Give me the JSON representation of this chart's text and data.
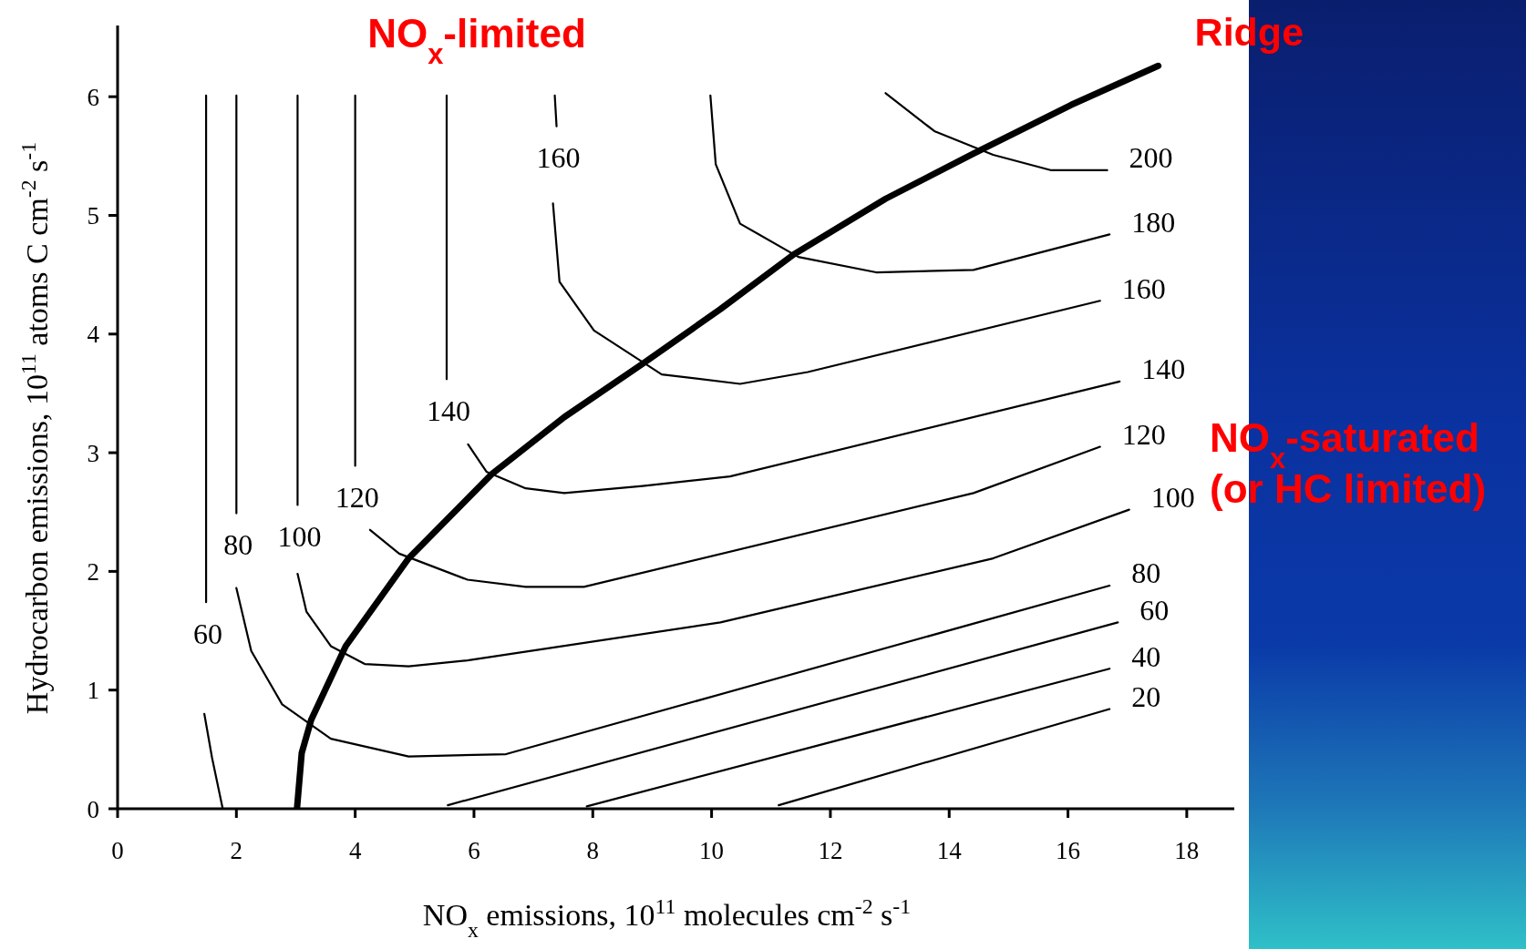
{
  "chart_data": {
    "type": "line",
    "xlabel": "NO$_{x}$ emissions, 10$^{11}$ molecules cm$^{-2}$ s$^{-1}$",
    "ylabel": "Hydrocarbon emissions, 10$^{11}$ atoms C cm$^{-2}$ s$^{-1}$",
    "xlim": [
      0,
      18.8
    ],
    "ylim": [
      0,
      6.6
    ],
    "xticks": [
      0,
      2,
      4,
      6,
      8,
      10,
      12,
      14,
      16,
      18
    ],
    "yticks": [
      0,
      1,
      2,
      3,
      4,
      5,
      6
    ],
    "marker": "none",
    "line_style": "solid",
    "annotations": [
      "NO$_{x}$-limited",
      "NO$_{x}$-saturated\n(or HC limited)"
    ],
    "series": [
      {
        "name": "Ridge",
        "color": "#000000",
        "x": [
          3.02,
          3.1,
          3.26,
          3.84,
          4.9,
          6.3,
          7.52,
          8.84,
          10.15,
          11.38,
          12.93,
          14.41,
          16.05,
          17.52
        ],
        "values": [
          0,
          0.47,
          0.75,
          1.37,
          2.11,
          2.82,
          3.3,
          3.75,
          4.21,
          4.67,
          5.14,
          5.52,
          5.93,
          6.26
        ]
      },
      {
        "name": "200",
        "color": "#000000",
        "x": [
          12.93,
          13.75,
          14.74,
          15.72,
          16.66
        ],
        "values": [
          6.03,
          5.71,
          5.51,
          5.38,
          5.38
        ]
      },
      {
        "name": "180",
        "color": "#000000",
        "x": [
          9.98,
          10.07,
          10.48,
          11.46,
          12.77,
          14.41,
          16.7
        ],
        "values": [
          6.01,
          5.43,
          4.93,
          4.65,
          4.52,
          4.54,
          4.84
        ]
      },
      {
        "name": "160",
        "color": "#000000",
        "x": [
          7.36,
          7.39
        ],
        "values": [
          6.01,
          5.75
        ]
      },
      {
        "name": "160",
        "color": "#000000",
        "x": [
          7.33,
          7.44,
          8.02,
          9.16,
          10.48,
          11.62,
          16.54
        ],
        "values": [
          5.1,
          4.44,
          4.03,
          3.66,
          3.58,
          3.68,
          4.28
        ]
      },
      {
        "name": "140",
        "color": "#000000",
        "x": [
          5.54,
          5.54
        ],
        "values": [
          6.01,
          3.62
        ]
      },
      {
        "name": "140",
        "color": "#000000",
        "x": [
          5.9,
          6.21,
          6.87,
          7.52,
          8.84,
          10.31,
          16.87
        ],
        "values": [
          3.07,
          2.84,
          2.7,
          2.66,
          2.72,
          2.8,
          3.6
        ]
      },
      {
        "name": "120",
        "color": "#000000",
        "x": [
          4.0,
          4.0
        ],
        "values": [
          6.01,
          2.89
        ]
      },
      {
        "name": "120",
        "color": "#000000",
        "x": [
          4.25,
          4.74,
          5.89,
          6.87,
          7.85,
          14.41,
          16.54
        ],
        "values": [
          2.35,
          2.15,
          1.93,
          1.87,
          1.87,
          2.66,
          3.05
        ]
      },
      {
        "name": "100",
        "color": "#000000",
        "x": [
          3.03,
          3.03
        ],
        "values": [
          6.01,
          2.56
        ]
      },
      {
        "name": "100",
        "color": "#000000",
        "x": [
          3.03,
          3.18,
          3.59,
          4.16,
          4.9,
          5.89,
          10.15,
          14.74,
          17.03
        ],
        "values": [
          1.98,
          1.66,
          1.37,
          1.22,
          1.2,
          1.25,
          1.57,
          2.11,
          2.52
        ]
      },
      {
        "name": "80",
        "color": "#000000",
        "x": [
          2.0,
          2.0
        ],
        "values": [
          6.01,
          2.49
        ]
      },
      {
        "name": "80",
        "color": "#000000",
        "x": [
          2.0,
          2.25,
          2.77,
          3.59,
          4.9,
          6.54,
          16.7
        ],
        "values": [
          1.86,
          1.33,
          0.88,
          0.59,
          0.44,
          0.46,
          1.88
        ]
      },
      {
        "name": "60",
        "color": "#000000",
        "x": [
          1.49,
          1.49
        ],
        "values": [
          6.01,
          1.74
        ]
      },
      {
        "color": "#000000",
        "x": [
          1.46,
          1.59,
          1.77
        ],
        "values": [
          0.8,
          0.43,
          0
        ]
      },
      {
        "name": "60",
        "color": "#000000",
        "x": [
          5.56,
          16.84
        ],
        "values": [
          0.03,
          1.57
        ]
      },
      {
        "name": "40",
        "color": "#000000",
        "x": [
          7.9,
          16.7
        ],
        "values": [
          0.02,
          1.18
        ]
      },
      {
        "name": "20",
        "color": "#000000",
        "x": [
          11.13,
          16.7
        ],
        "values": [
          0.03,
          0.84
        ]
      }
    ]
  }
}
